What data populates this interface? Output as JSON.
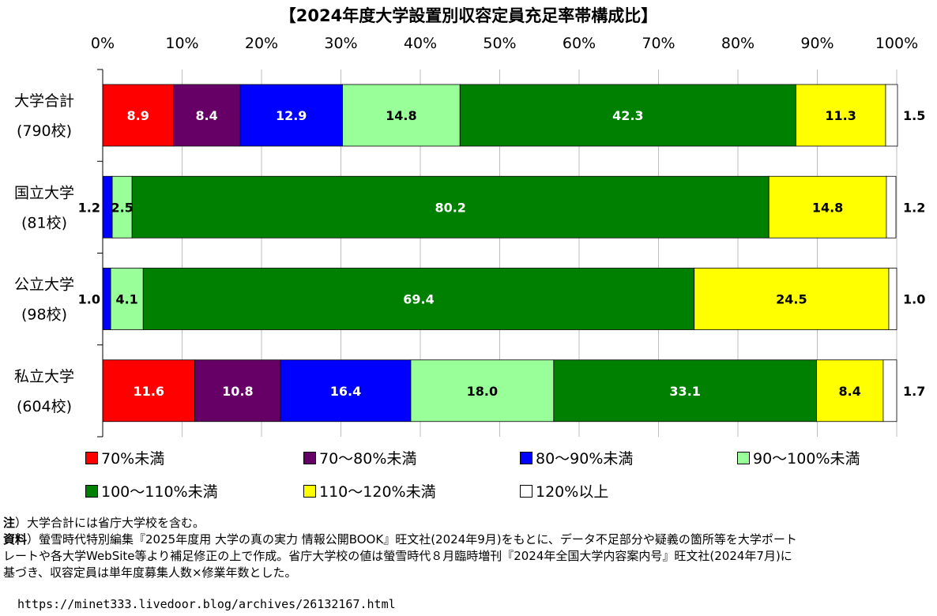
{
  "chart_data": {
    "type": "bar",
    "orientation": "horizontal",
    "stacked": true,
    "title": "【2024年度大学設置別収容定員充足率帯構成比】",
    "xlim": [
      0,
      100
    ],
    "x_ticks": [
      "0%",
      "10%",
      "20%",
      "30%",
      "40%",
      "50%",
      "60%",
      "70%",
      "80%",
      "90%",
      "100%"
    ],
    "x_tick_position": "top",
    "grid": "vertical",
    "legend_position": "bottom",
    "categories": [
      {
        "name": "大学合計",
        "count": "(790校)"
      },
      {
        "name": "国立大学",
        "count": "(81校)"
      },
      {
        "name": "公立大学",
        "count": "(98校)"
      },
      {
        "name": "私立大学",
        "count": "(604校)"
      }
    ],
    "series": [
      {
        "name": "70%未満",
        "color": "#ff0000",
        "values": [
          8.9,
          0,
          0,
          11.6
        ],
        "labels": [
          "8.9",
          "",
          "",
          "11.6"
        ]
      },
      {
        "name": "70～80%未満",
        "color": "#660066",
        "values": [
          8.4,
          0,
          0,
          10.8
        ],
        "labels": [
          "8.4",
          "",
          "",
          "10.8"
        ]
      },
      {
        "name": "80～90%未満",
        "color": "#0000ff",
        "values": [
          12.9,
          1.2,
          1.0,
          16.4
        ],
        "labels": [
          "12.9",
          "1.2",
          "1.0",
          "16.4"
        ]
      },
      {
        "name": "90～100%未満",
        "color": "#99ff99",
        "values": [
          14.8,
          2.5,
          4.1,
          18.0
        ],
        "labels": [
          "14.8",
          "2.5",
          "4.1",
          "18.0"
        ]
      },
      {
        "name": "100～110%未満",
        "color": "#008000",
        "values": [
          42.3,
          80.2,
          69.4,
          33.1
        ],
        "labels": [
          "42.3",
          "80.2",
          "69.4",
          "33.1"
        ]
      },
      {
        "name": "110～120%未満",
        "color": "#ffff00",
        "values": [
          11.3,
          14.8,
          24.5,
          8.4
        ],
        "labels": [
          "11.3",
          "14.8",
          "24.5",
          "8.4"
        ]
      },
      {
        "name": "120%以上",
        "color": "#ffffff",
        "values": [
          1.5,
          1.2,
          1.0,
          1.7
        ],
        "labels": [
          "1.5",
          "1.2",
          "1.0",
          "1.7"
        ]
      }
    ]
  },
  "notes": {
    "note1_head": "注",
    "note1_text": "）大学合計には省庁大学校を含む。",
    "source_head": "資料",
    "source_line1": "）螢雪時代特別編集『2025年度用 大学の真の実力 情報公開BOOK』旺文社(2024年9月)をもとに、データ不足部分や疑義の箇所等を大学ポート",
    "source_line2": "レートや各大学WebSite等より補足修正の上で作成。省庁大学校の値は螢雪時代８月臨時増刊『2024年全国大学内容案内号』旺文社(2024年7月)に",
    "source_line3": "基づき、収容定員は単年度募集人数×修業年数とした。"
  },
  "url": "https://minet333.livedoor.blog/archives/26132167.html"
}
